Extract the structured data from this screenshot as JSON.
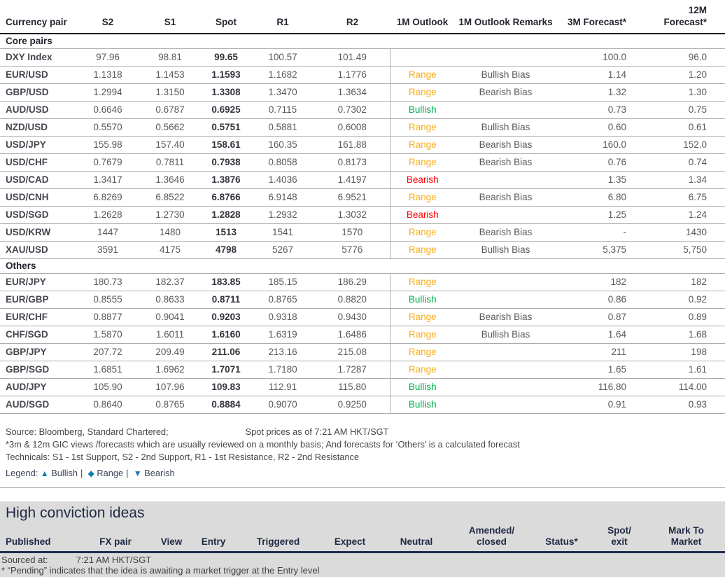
{
  "colors": {
    "bullish": "#00B050",
    "range": "#F9AE13",
    "bearish": "#FF0000",
    "legend_symbol": "#157DAD"
  },
  "fx_table": {
    "headers": [
      "Currency pair",
      "S2",
      "S1",
      "Spot",
      "R1",
      "R2",
      "1M Outlook",
      "1M Outlook Remarks",
      "3M Forecast*",
      "12M Forecast*"
    ],
    "sections": [
      {
        "label": "Core pairs",
        "rows": [
          {
            "pair": "DXY Index",
            "s2": "97.96",
            "s1": "98.81",
            "spot": "99.65",
            "r1": "100.57",
            "r2": "101.49",
            "outlook": "",
            "outlook_type": "",
            "remarks": "",
            "f3m": "100.0",
            "f12m": "96.0"
          },
          {
            "pair": "EUR/USD",
            "s2": "1.1318",
            "s1": "1.1453",
            "spot": "1.1593",
            "r1": "1.1682",
            "r2": "1.1776",
            "outlook": "Range",
            "outlook_type": "range",
            "remarks": "Bullish Bias",
            "f3m": "1.14",
            "f12m": "1.20"
          },
          {
            "pair": "GBP/USD",
            "s2": "1.2994",
            "s1": "1.3150",
            "spot": "1.3308",
            "r1": "1.3470",
            "r2": "1.3634",
            "outlook": "Range",
            "outlook_type": "range",
            "remarks": "Bearish Bias",
            "f3m": "1.32",
            "f12m": "1.30"
          },
          {
            "pair": "AUD/USD",
            "s2": "0.6646",
            "s1": "0.6787",
            "spot": "0.6925",
            "r1": "0.7115",
            "r2": "0.7302",
            "outlook": "Bullish",
            "outlook_type": "bullish",
            "remarks": "",
            "f3m": "0.73",
            "f12m": "0.75"
          },
          {
            "pair": "NZD/USD",
            "s2": "0.5570",
            "s1": "0.5662",
            "spot": "0.5751",
            "r1": "0.5881",
            "r2": "0.6008",
            "outlook": "Range",
            "outlook_type": "range",
            "remarks": "Bullish Bias",
            "f3m": "0.60",
            "f12m": "0.61"
          },
          {
            "pair": "USD/JPY",
            "s2": "155.98",
            "s1": "157.40",
            "spot": "158.61",
            "r1": "160.35",
            "r2": "161.88",
            "outlook": "Range",
            "outlook_type": "range",
            "remarks": "Bearish Bias",
            "f3m": "160.0",
            "f12m": "152.0"
          },
          {
            "pair": "USD/CHF",
            "s2": "0.7679",
            "s1": "0.7811",
            "spot": "0.7938",
            "r1": "0.8058",
            "r2": "0.8173",
            "outlook": "Range",
            "outlook_type": "range",
            "remarks": "Bearish Bias",
            "f3m": "0.76",
            "f12m": "0.74"
          },
          {
            "pair": "USD/CAD",
            "s2": "1.3417",
            "s1": "1.3646",
            "spot": "1.3876",
            "r1": "1.4036",
            "r2": "1.4197",
            "outlook": "Bearish",
            "outlook_type": "bearish",
            "remarks": "",
            "f3m": "1.35",
            "f12m": "1.34"
          },
          {
            "pair": "USD/CNH",
            "s2": "6.8269",
            "s1": "6.8522",
            "spot": "6.8766",
            "r1": "6.9148",
            "r2": "6.9521",
            "outlook": "Range",
            "outlook_type": "range",
            "remarks": "Bearish Bias",
            "f3m": "6.80",
            "f12m": "6.75"
          },
          {
            "pair": "USD/SGD",
            "s2": "1.2628",
            "s1": "1.2730",
            "spot": "1.2828",
            "r1": "1.2932",
            "r2": "1.3032",
            "outlook": "Bearish",
            "outlook_type": "bearish",
            "remarks": "",
            "f3m": "1.25",
            "f12m": "1.24"
          },
          {
            "pair": "USD/KRW",
            "s2": "1447",
            "s1": "1480",
            "spot": "1513",
            "r1": "1541",
            "r2": "1570",
            "outlook": "Range",
            "outlook_type": "range",
            "remarks": "Bearish Bias",
            "f3m": "-",
            "f12m": "1430"
          },
          {
            "pair": "XAU/USD",
            "s2": "3591",
            "s1": "4175",
            "spot": "4798",
            "r1": "5267",
            "r2": "5776",
            "outlook": "Range",
            "outlook_type": "range",
            "remarks": "Bullish Bias",
            "f3m": "5,375",
            "f12m": "5,750"
          }
        ]
      },
      {
        "label": "Others",
        "rows": [
          {
            "pair": "EUR/JPY",
            "s2": "180.73",
            "s1": "182.37",
            "spot": "183.85",
            "r1": "185.15",
            "r2": "186.29",
            "outlook": "Range",
            "outlook_type": "range",
            "remarks": "",
            "f3m": "182",
            "f12m": "182"
          },
          {
            "pair": "EUR/GBP",
            "s2": "0.8555",
            "s1": "0.8633",
            "spot": "0.8711",
            "r1": "0.8765",
            "r2": "0.8820",
            "outlook": "Bullish",
            "outlook_type": "bullish",
            "remarks": "",
            "f3m": "0.86",
            "f12m": "0.92"
          },
          {
            "pair": "EUR/CHF",
            "s2": "0.8877",
            "s1": "0.9041",
            "spot": "0.9203",
            "r1": "0.9318",
            "r2": "0.9430",
            "outlook": "Range",
            "outlook_type": "range",
            "remarks": "Bearish Bias",
            "f3m": "0.87",
            "f12m": "0.89"
          },
          {
            "pair": "CHF/SGD",
            "s2": "1.5870",
            "s1": "1.6011",
            "spot": "1.6160",
            "r1": "1.6319",
            "r2": "1.6486",
            "outlook": "Range",
            "outlook_type": "range",
            "remarks": "Bullish Bias",
            "f3m": "1.64",
            "f12m": "1.68"
          },
          {
            "pair": "GBP/JPY",
            "s2": "207.72",
            "s1": "209.49",
            "spot": "211.06",
            "r1": "213.16",
            "r2": "215.08",
            "outlook": "Range",
            "outlook_type": "range",
            "remarks": "",
            "f3m": "211",
            "f12m": "198"
          },
          {
            "pair": "GBP/SGD",
            "s2": "1.6851",
            "s1": "1.6962",
            "spot": "1.7071",
            "r1": "1.7180",
            "r2": "1.7287",
            "outlook": "Range",
            "outlook_type": "range",
            "remarks": "",
            "f3m": "1.65",
            "f12m": "1.61"
          },
          {
            "pair": "AUD/JPY",
            "s2": "105.90",
            "s1": "107.96",
            "spot": "109.83",
            "r1": "112.91",
            "r2": "115.80",
            "outlook": "Bullish",
            "outlook_type": "bullish",
            "remarks": "",
            "f3m": "116.80",
            "f12m": "114.00"
          },
          {
            "pair": "AUD/SGD",
            "s2": "0.8640",
            "s1": "0.8765",
            "spot": "0.8884",
            "r1": "0.9070",
            "r2": "0.9250",
            "outlook": "Bullish",
            "outlook_type": "bullish",
            "remarks": "",
            "f3m": "0.91",
            "f12m": "0.93"
          }
        ]
      }
    ]
  },
  "footnotes": {
    "source": "Source: Bloomberg, Standard Chartered;",
    "spot_asof": "Spot prices as of 7:21 AM HKT/SGT",
    "note_gic": "*3m & 12m GIC views /forecasts which are usually reviewed on a monthly basis; And forecasts for ‘Others’ is a calculated forecast",
    "note_technicals": "Technicals: S1 - 1st Support, S2 - 2nd Support, R1 - 1st Resistance, R2 - 2nd Resistance",
    "legend": {
      "label": "Legend:",
      "items": [
        {
          "symbol": "▲",
          "label": "Bullish"
        },
        {
          "symbol": "◆",
          "label": "Range"
        },
        {
          "symbol": "▼",
          "label": "Bearish"
        }
      ]
    }
  },
  "conviction": {
    "title": "High conviction ideas",
    "headers": [
      "Published",
      "FX pair",
      "View",
      "Entry",
      "Triggered",
      "Expect",
      "Neutral",
      "Amended/\nclosed",
      "Status*",
      "Spot/\nexit",
      "Mark To\nMarket"
    ],
    "sourced_label": "Sourced at:",
    "sourced_value": "7:21 AM HKT/SGT",
    "pending_note": "* “Pending” indicates that the idea is awaiting a market trigger at the Entry level"
  }
}
